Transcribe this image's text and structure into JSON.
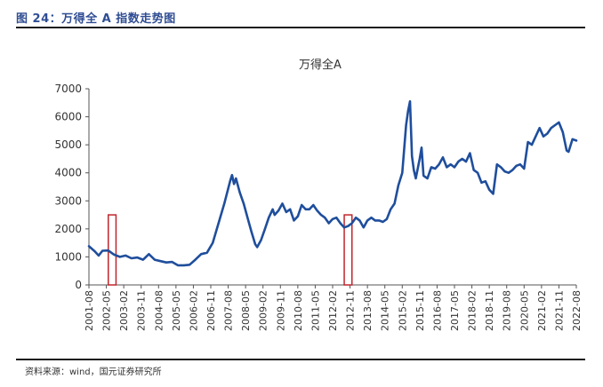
{
  "figure_title": "图 24：万得全 A 指数走势图",
  "source_note": "资料来源：wind，国元证券研究所",
  "colors": {
    "title": "#2f4d93",
    "series": "#1f4e9c",
    "highlight": "#c0262d",
    "axis": "#555555",
    "text": "#333333"
  },
  "chart_data": {
    "type": "line",
    "title": "万得全A",
    "xlabel": "",
    "ylabel": "",
    "ylim": [
      0,
      7000
    ],
    "yticks": [
      0,
      1000,
      2000,
      3000,
      4000,
      5000,
      6000,
      7000
    ],
    "xrange": [
      "2001-08",
      "2022-08"
    ],
    "xtick_labels": [
      "2001-08",
      "2002-05",
      "2003-02",
      "2003-11",
      "2004-08",
      "2005-05",
      "2006-02",
      "2006-11",
      "2007-08",
      "2008-05",
      "2009-02",
      "2009-11",
      "2010-08",
      "2011-05",
      "2012-02",
      "2012-11",
      "2013-08",
      "2014-05",
      "2015-02",
      "2015-11",
      "2016-08",
      "2017-05",
      "2018-02",
      "2018-11",
      "2019-08",
      "2020-05",
      "2021-02",
      "2021-11",
      "2022-08"
    ],
    "grid": false,
    "legend": "none",
    "series": [
      {
        "x": [
          "2001-08",
          "2001-11",
          "2002-01",
          "2002-03",
          "2002-06",
          "2002-09",
          "2002-12",
          "2003-03",
          "2003-06",
          "2003-09",
          "2003-12",
          "2004-03",
          "2004-06",
          "2004-09",
          "2004-12",
          "2005-03",
          "2005-06",
          "2005-09",
          "2005-12",
          "2006-03",
          "2006-06",
          "2006-09",
          "2006-12",
          "2007-03",
          "2007-06",
          "2007-09",
          "2007-10",
          "2007-11",
          "2007-12",
          "2008-02",
          "2008-04",
          "2008-06",
          "2008-08",
          "2008-10",
          "2008-11",
          "2009-01",
          "2009-03",
          "2009-05",
          "2009-07",
          "2009-08",
          "2009-10",
          "2009-12",
          "2010-02",
          "2010-04",
          "2010-06",
          "2010-08",
          "2010-10",
          "2010-12",
          "2011-02",
          "2011-04",
          "2011-06",
          "2011-08",
          "2011-10",
          "2011-12",
          "2012-02",
          "2012-04",
          "2012-06",
          "2012-08",
          "2012-10",
          "2012-12",
          "2013-02",
          "2013-04",
          "2013-06",
          "2013-08",
          "2013-10",
          "2013-12",
          "2014-02",
          "2014-04",
          "2014-06",
          "2014-08",
          "2014-10",
          "2014-12",
          "2015-02",
          "2015-04",
          "2015-05",
          "2015-06",
          "2015-07",
          "2015-08",
          "2015-09",
          "2015-11",
          "2015-12",
          "2016-01",
          "2016-03",
          "2016-05",
          "2016-07",
          "2016-09",
          "2016-11",
          "2017-01",
          "2017-03",
          "2017-05",
          "2017-07",
          "2017-09",
          "2017-11",
          "2018-01",
          "2018-03",
          "2018-05",
          "2018-07",
          "2018-09",
          "2018-11",
          "2019-01",
          "2019-03",
          "2019-05",
          "2019-07",
          "2019-09",
          "2019-11",
          "2020-01",
          "2020-03",
          "2020-05",
          "2020-07",
          "2020-09",
          "2020-11",
          "2021-01",
          "2021-03",
          "2021-05",
          "2021-07",
          "2021-09",
          "2021-11",
          "2022-01",
          "2022-03",
          "2022-04",
          "2022-06",
          "2022-08"
        ],
        "y": [
          1380,
          1200,
          1050,
          1220,
          1230,
          1080,
          1000,
          1050,
          950,
          980,
          900,
          1100,
          900,
          850,
          800,
          820,
          700,
          700,
          720,
          900,
          1100,
          1150,
          1500,
          2200,
          2900,
          3700,
          3920,
          3600,
          3800,
          3300,
          2900,
          2400,
          1900,
          1450,
          1350,
          1600,
          2000,
          2400,
          2700,
          2500,
          2650,
          2900,
          2600,
          2700,
          2300,
          2450,
          2850,
          2700,
          2700,
          2850,
          2650,
          2500,
          2400,
          2200,
          2350,
          2400,
          2200,
          2050,
          2100,
          2200,
          2400,
          2300,
          2050,
          2300,
          2400,
          2300,
          2300,
          2250,
          2350,
          2700,
          2900,
          3550,
          4000,
          5700,
          6200,
          6550,
          4600,
          4100,
          3800,
          4500,
          4900,
          3900,
          3800,
          4200,
          4150,
          4300,
          4550,
          4200,
          4300,
          4200,
          4400,
          4500,
          4400,
          4700,
          4100,
          4000,
          3650,
          3700,
          3400,
          3250,
          4300,
          4200,
          4050,
          4000,
          4100,
          4250,
          4300,
          4150,
          5100,
          5000,
          5300,
          5600,
          5300,
          5400,
          5600,
          5700,
          5800,
          5450,
          4800,
          4750,
          5200,
          5150
        ],
        "highlight_periods": [
          [
            "2002-06",
            "2002-10"
          ],
          [
            "2012-08",
            "2012-12"
          ]
        ]
      }
    ]
  }
}
